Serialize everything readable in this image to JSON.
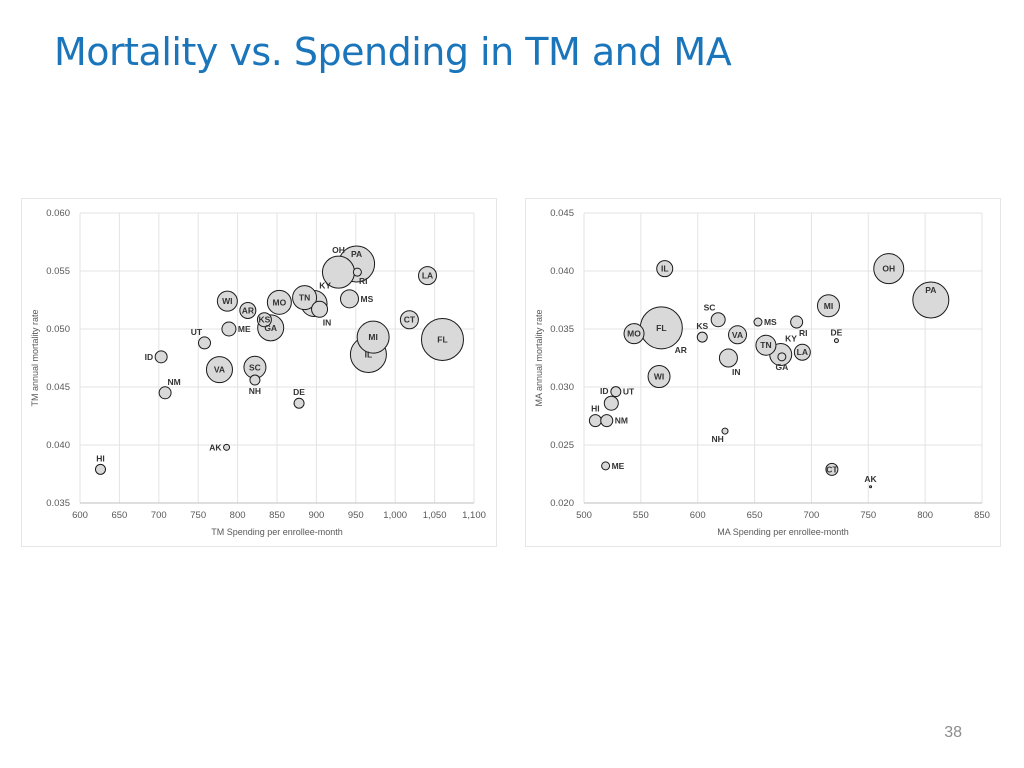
{
  "title": "Mortality vs. Spending in TM and MA",
  "page_number": "38",
  "chart_data": [
    {
      "type": "scatter",
      "id": "tm",
      "title": "",
      "xlabel": "TM Spending per enrollee-month",
      "ylabel": "TM annual mortality rate",
      "xlim": [
        600,
        1100
      ],
      "ylim": [
        0.035,
        0.06
      ],
      "xticks": [
        600,
        650,
        700,
        750,
        800,
        850,
        900,
        950,
        1000,
        1050,
        1100
      ],
      "xtick_labels": [
        "600",
        "650",
        "700",
        "750",
        "800",
        "850",
        "900",
        "950",
        "1,000",
        "1,050",
        "1,100"
      ],
      "yticks": [
        0.035,
        0.04,
        0.045,
        0.05,
        0.055,
        0.06
      ],
      "ytick_labels": [
        "0.035",
        "0.040",
        "0.045",
        "0.050",
        "0.055",
        "0.060"
      ],
      "grid": true,
      "marker_fill": "#d9d9d9",
      "marker_stroke": "#1a1a1a",
      "label_color": "#333333",
      "points": [
        {
          "label": "PA",
          "x": 951,
          "y": 0.0556,
          "r": 18,
          "lp": "in-top"
        },
        {
          "label": "OH",
          "x": 928,
          "y": 0.0549,
          "r": 16,
          "lp": "above"
        },
        {
          "label": "RI",
          "x": 952,
          "y": 0.0549,
          "r": 4,
          "lp": "below-right"
        },
        {
          "label": "LA",
          "x": 1041,
          "y": 0.0546,
          "r": 9,
          "lp": "center"
        },
        {
          "label": "KY",
          "x": 897,
          "y": 0.0522,
          "r": 13,
          "lp": "above-right"
        },
        {
          "label": "MS",
          "x": 942,
          "y": 0.0526,
          "r": 9,
          "lp": "right"
        },
        {
          "label": "TN",
          "x": 885,
          "y": 0.0527,
          "r": 12,
          "lp": "center"
        },
        {
          "label": "IN",
          "x": 904,
          "y": 0.0517,
          "r": 8,
          "lp": "below-right"
        },
        {
          "label": "WI",
          "x": 787,
          "y": 0.0524,
          "r": 10,
          "lp": "center"
        },
        {
          "label": "MO",
          "x": 853,
          "y": 0.0523,
          "r": 12,
          "lp": "center"
        },
        {
          "label": "AR",
          "x": 813,
          "y": 0.0516,
          "r": 8,
          "lp": "center"
        },
        {
          "label": "KS",
          "x": 834,
          "y": 0.0508,
          "r": 7,
          "lp": "center"
        },
        {
          "label": "GA",
          "x": 842,
          "y": 0.0501,
          "r": 13,
          "lp": "center"
        },
        {
          "label": "CT",
          "x": 1018,
          "y": 0.0508,
          "r": 9,
          "lp": "center"
        },
        {
          "label": "ME",
          "x": 789,
          "y": 0.05,
          "r": 7,
          "lp": "right"
        },
        {
          "label": "UT",
          "x": 758,
          "y": 0.0488,
          "r": 6,
          "lp": "above-left"
        },
        {
          "label": "MI",
          "x": 972,
          "y": 0.0493,
          "r": 16,
          "lp": "center"
        },
        {
          "label": "FL",
          "x": 1060,
          "y": 0.0491,
          "r": 21,
          "lp": "center"
        },
        {
          "label": "IL",
          "x": 966,
          "y": 0.0478,
          "r": 18,
          "lp": "center"
        },
        {
          "label": "ID",
          "x": 703,
          "y": 0.0476,
          "r": 6,
          "lp": "left"
        },
        {
          "label": "VA",
          "x": 777,
          "y": 0.0465,
          "r": 13,
          "lp": "center"
        },
        {
          "label": "SC",
          "x": 822,
          "y": 0.0467,
          "r": 11,
          "lp": "center"
        },
        {
          "label": "NH",
          "x": 822,
          "y": 0.0456,
          "r": 5,
          "lp": "below"
        },
        {
          "label": "NM",
          "x": 708,
          "y": 0.0445,
          "r": 6,
          "lp": "above-right"
        },
        {
          "label": "DE",
          "x": 878,
          "y": 0.0436,
          "r": 5,
          "lp": "above"
        },
        {
          "label": "AK",
          "x": 786,
          "y": 0.0398,
          "r": 3,
          "lp": "left"
        },
        {
          "label": "HI",
          "x": 626,
          "y": 0.0379,
          "r": 5,
          "lp": "above"
        }
      ]
    },
    {
      "type": "scatter",
      "id": "ma",
      "title": "",
      "xlabel": "MA Spending per enrollee-month",
      "ylabel": "MA annual mortality rate",
      "xlim": [
        500,
        850
      ],
      "ylim": [
        0.02,
        0.045
      ],
      "xticks": [
        500,
        550,
        600,
        650,
        700,
        750,
        800,
        850
      ],
      "xtick_labels": [
        "500",
        "550",
        "600",
        "650",
        "700",
        "750",
        "800",
        "850"
      ],
      "yticks": [
        0.02,
        0.025,
        0.03,
        0.035,
        0.04,
        0.045
      ],
      "ytick_labels": [
        "0.020",
        "0.025",
        "0.030",
        "0.035",
        "0.040",
        "0.045"
      ],
      "grid": true,
      "marker_fill": "#d9d9d9",
      "marker_stroke": "#1a1a1a",
      "label_color": "#333333",
      "points": [
        {
          "label": "IL",
          "x": 571,
          "y": 0.0402,
          "r": 8,
          "lp": "center"
        },
        {
          "label": "OH",
          "x": 768,
          "y": 0.0402,
          "r": 15,
          "lp": "center"
        },
        {
          "label": "PA",
          "x": 805,
          "y": 0.0375,
          "r": 18,
          "lp": "in-top"
        },
        {
          "label": "MI",
          "x": 715,
          "y": 0.037,
          "r": 11,
          "lp": "center"
        },
        {
          "label": "SC",
          "x": 618,
          "y": 0.0358,
          "r": 7,
          "lp": "above-left"
        },
        {
          "label": "MS",
          "x": 653,
          "y": 0.0356,
          "r": 4,
          "lp": "right"
        },
        {
          "label": "RI",
          "x": 687,
          "y": 0.0356,
          "r": 6,
          "lp": "below-right"
        },
        {
          "label": "FL",
          "x": 568,
          "y": 0.0351,
          "r": 21,
          "lp": "center"
        },
        {
          "label": "MO",
          "x": 544,
          "y": 0.0346,
          "r": 10,
          "lp": "center"
        },
        {
          "label": "KS",
          "x": 604,
          "y": 0.0343,
          "r": 5,
          "lp": "above"
        },
        {
          "label": "VA",
          "x": 635,
          "y": 0.0345,
          "r": 9,
          "lp": "center"
        },
        {
          "label": "DE",
          "x": 722,
          "y": 0.034,
          "r": 2,
          "lp": "above"
        },
        {
          "label": "AR",
          "x": 579,
          "y": 0.0338,
          "r": 0,
          "lp": "below-right"
        },
        {
          "label": "TN",
          "x": 660,
          "y": 0.0336,
          "r": 10,
          "lp": "center"
        },
        {
          "label": "KY",
          "x": 673,
          "y": 0.0328,
          "r": 11,
          "lp": "above-right"
        },
        {
          "label": "LA",
          "x": 692,
          "y": 0.033,
          "r": 8,
          "lp": "center"
        },
        {
          "label": "IN",
          "x": 627,
          "y": 0.0325,
          "r": 9,
          "lp": "below-right"
        },
        {
          "label": "GA",
          "x": 674,
          "y": 0.0326,
          "r": 4,
          "lp": "below"
        },
        {
          "label": "WI",
          "x": 566,
          "y": 0.0309,
          "r": 11,
          "lp": "center"
        },
        {
          "label": "UT",
          "x": 528,
          "y": 0.0296,
          "r": 5,
          "lp": "right"
        },
        {
          "label": "ID",
          "x": 524,
          "y": 0.0286,
          "r": 7,
          "lp": "above-left"
        },
        {
          "label": "HI",
          "x": 510,
          "y": 0.0271,
          "r": 6,
          "lp": "above"
        },
        {
          "label": "NM",
          "x": 520,
          "y": 0.0271,
          "r": 6,
          "lp": "right"
        },
        {
          "label": "NH",
          "x": 624,
          "y": 0.0262,
          "r": 3,
          "lp": "below-left"
        },
        {
          "label": "ME",
          "x": 519,
          "y": 0.0232,
          "r": 4,
          "lp": "right"
        },
        {
          "label": "CT",
          "x": 718,
          "y": 0.0229,
          "r": 6,
          "lp": "center"
        },
        {
          "label": "AK",
          "x": 752,
          "y": 0.0214,
          "r": 1,
          "lp": "above"
        }
      ]
    }
  ]
}
